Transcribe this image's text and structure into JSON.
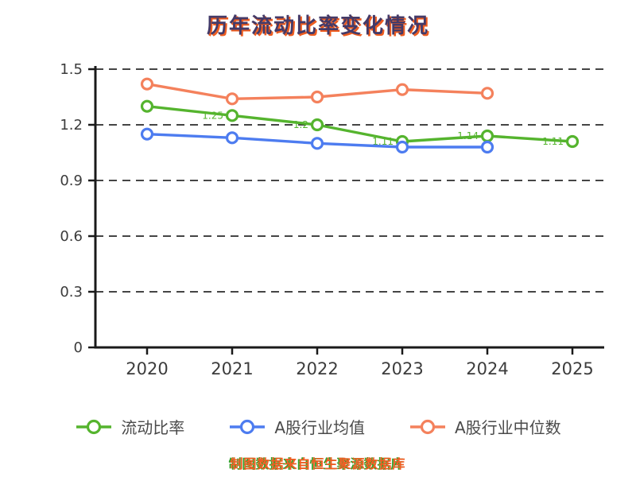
{
  "chart_data": {
    "type": "line",
    "title": "历年流动比率变化情况",
    "source_note": "制图数据来自恒生聚源数据库",
    "xlabel": "",
    "ylabel": "",
    "categories": [
      "2020",
      "2021",
      "2022",
      "2023",
      "2024",
      "2025"
    ],
    "ylim": [
      0,
      1.5
    ],
    "yticks": [
      0,
      0.3,
      0.6,
      0.9,
      1.2,
      1.5
    ],
    "ytick_labels": [
      "0",
      "0.3",
      "0.6",
      "0.9",
      "1.2",
      "1.5"
    ],
    "grid": "horizontal-dashed",
    "legend_position": "bottom",
    "axis_color": "#1a1a1a",
    "grid_color": "#2b2b2b",
    "tick_label_color": "#3c3c3c",
    "title_color": "#443a68",
    "title_shadow_color": "#ee5c1f",
    "source_note_color": "#f25c22",
    "source_note_shadow_color": "#35a02a",
    "series": [
      {
        "key": "current-ratio",
        "name": "流动比率",
        "color": "#55b42e",
        "values": [
          1.3,
          1.25,
          1.2,
          1.11,
          1.14,
          1.11
        ],
        "point_labels": [
          "",
          "1.25",
          "1.2",
          "1.11",
          "1.14",
          "1.11"
        ]
      },
      {
        "key": "a-share-industry-mean",
        "name": "A股行业均值",
        "color": "#4d7cf0",
        "values": [
          1.15,
          1.13,
          1.1,
          1.08,
          1.08,
          null
        ]
      },
      {
        "key": "a-share-industry-median",
        "name": "A股行业中位数",
        "color": "#f4815c",
        "values": [
          1.42,
          1.34,
          1.35,
          1.39,
          1.37,
          null
        ]
      }
    ]
  }
}
